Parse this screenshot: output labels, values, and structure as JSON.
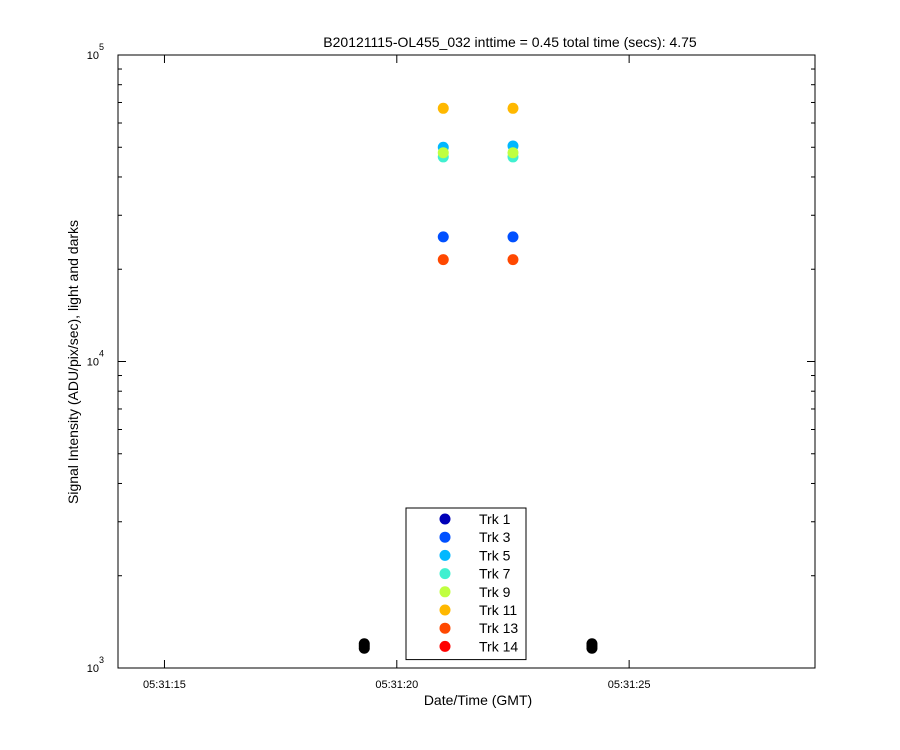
{
  "chart_data": {
    "type": "scatter",
    "title": "B20121115-OL455_032 inttime = 0.45 total time (secs): 4.75",
    "xlabel": "Date/Time (GMT)",
    "ylabel": "Signal Intensity (ADU/pix/sec), light and darks",
    "y_scale": "log",
    "ylim": [
      1000,
      100000
    ],
    "xlim": [
      "05:31:14",
      "05:31:29"
    ],
    "x_ticks": [
      "05:31:15",
      "05:31:20",
      "05:31:25"
    ],
    "y_ticks": [
      {
        "base": "10",
        "exp": "3",
        "value": 1000
      },
      {
        "base": "10",
        "exp": "4",
        "value": 10000
      },
      {
        "base": "10",
        "exp": "5",
        "value": 100000
      }
    ],
    "legend_position": "bottom-center",
    "series": [
      {
        "name": "Trk 1",
        "color": "#0000b8",
        "points": []
      },
      {
        "name": "Trk 3",
        "color": "#0050ff",
        "points": [
          {
            "x": "05:31:21.0",
            "y": 25500
          },
          {
            "x": "05:31:22.5",
            "y": 25500
          }
        ]
      },
      {
        "name": "Trk 5",
        "color": "#00b8ff",
        "points": [
          {
            "x": "05:31:21.0",
            "y": 50000
          },
          {
            "x": "05:31:22.5",
            "y": 50500
          }
        ]
      },
      {
        "name": "Trk 7",
        "color": "#40f0d0",
        "points": [
          {
            "x": "05:31:21.0",
            "y": 46500
          },
          {
            "x": "05:31:22.5",
            "y": 46500
          }
        ]
      },
      {
        "name": "Trk 9",
        "color": "#c0ff40",
        "points": [
          {
            "x": "05:31:21.0",
            "y": 48000
          },
          {
            "x": "05:31:22.5",
            "y": 48000
          }
        ]
      },
      {
        "name": "Trk 11",
        "color": "#ffb800",
        "points": [
          {
            "x": "05:31:21.0",
            "y": 67000
          },
          {
            "x": "05:31:22.5",
            "y": 67000
          }
        ]
      },
      {
        "name": "Trk 13",
        "color": "#ff4800",
        "points": [
          {
            "x": "05:31:21.0",
            "y": 21500
          },
          {
            "x": "05:31:22.5",
            "y": 21500
          }
        ]
      },
      {
        "name": "Trk 14",
        "color": "#ff0000",
        "points": []
      }
    ],
    "dark_frames": {
      "color": "#000000",
      "points": [
        {
          "x": "05:31:19.3",
          "y": 1160
        },
        {
          "x": "05:31:19.3",
          "y": 1180
        },
        {
          "x": "05:31:19.3",
          "y": 1200
        },
        {
          "x": "05:31:24.2",
          "y": 1160
        },
        {
          "x": "05:31:24.2",
          "y": 1180
        },
        {
          "x": "05:31:24.2",
          "y": 1200
        }
      ]
    }
  }
}
